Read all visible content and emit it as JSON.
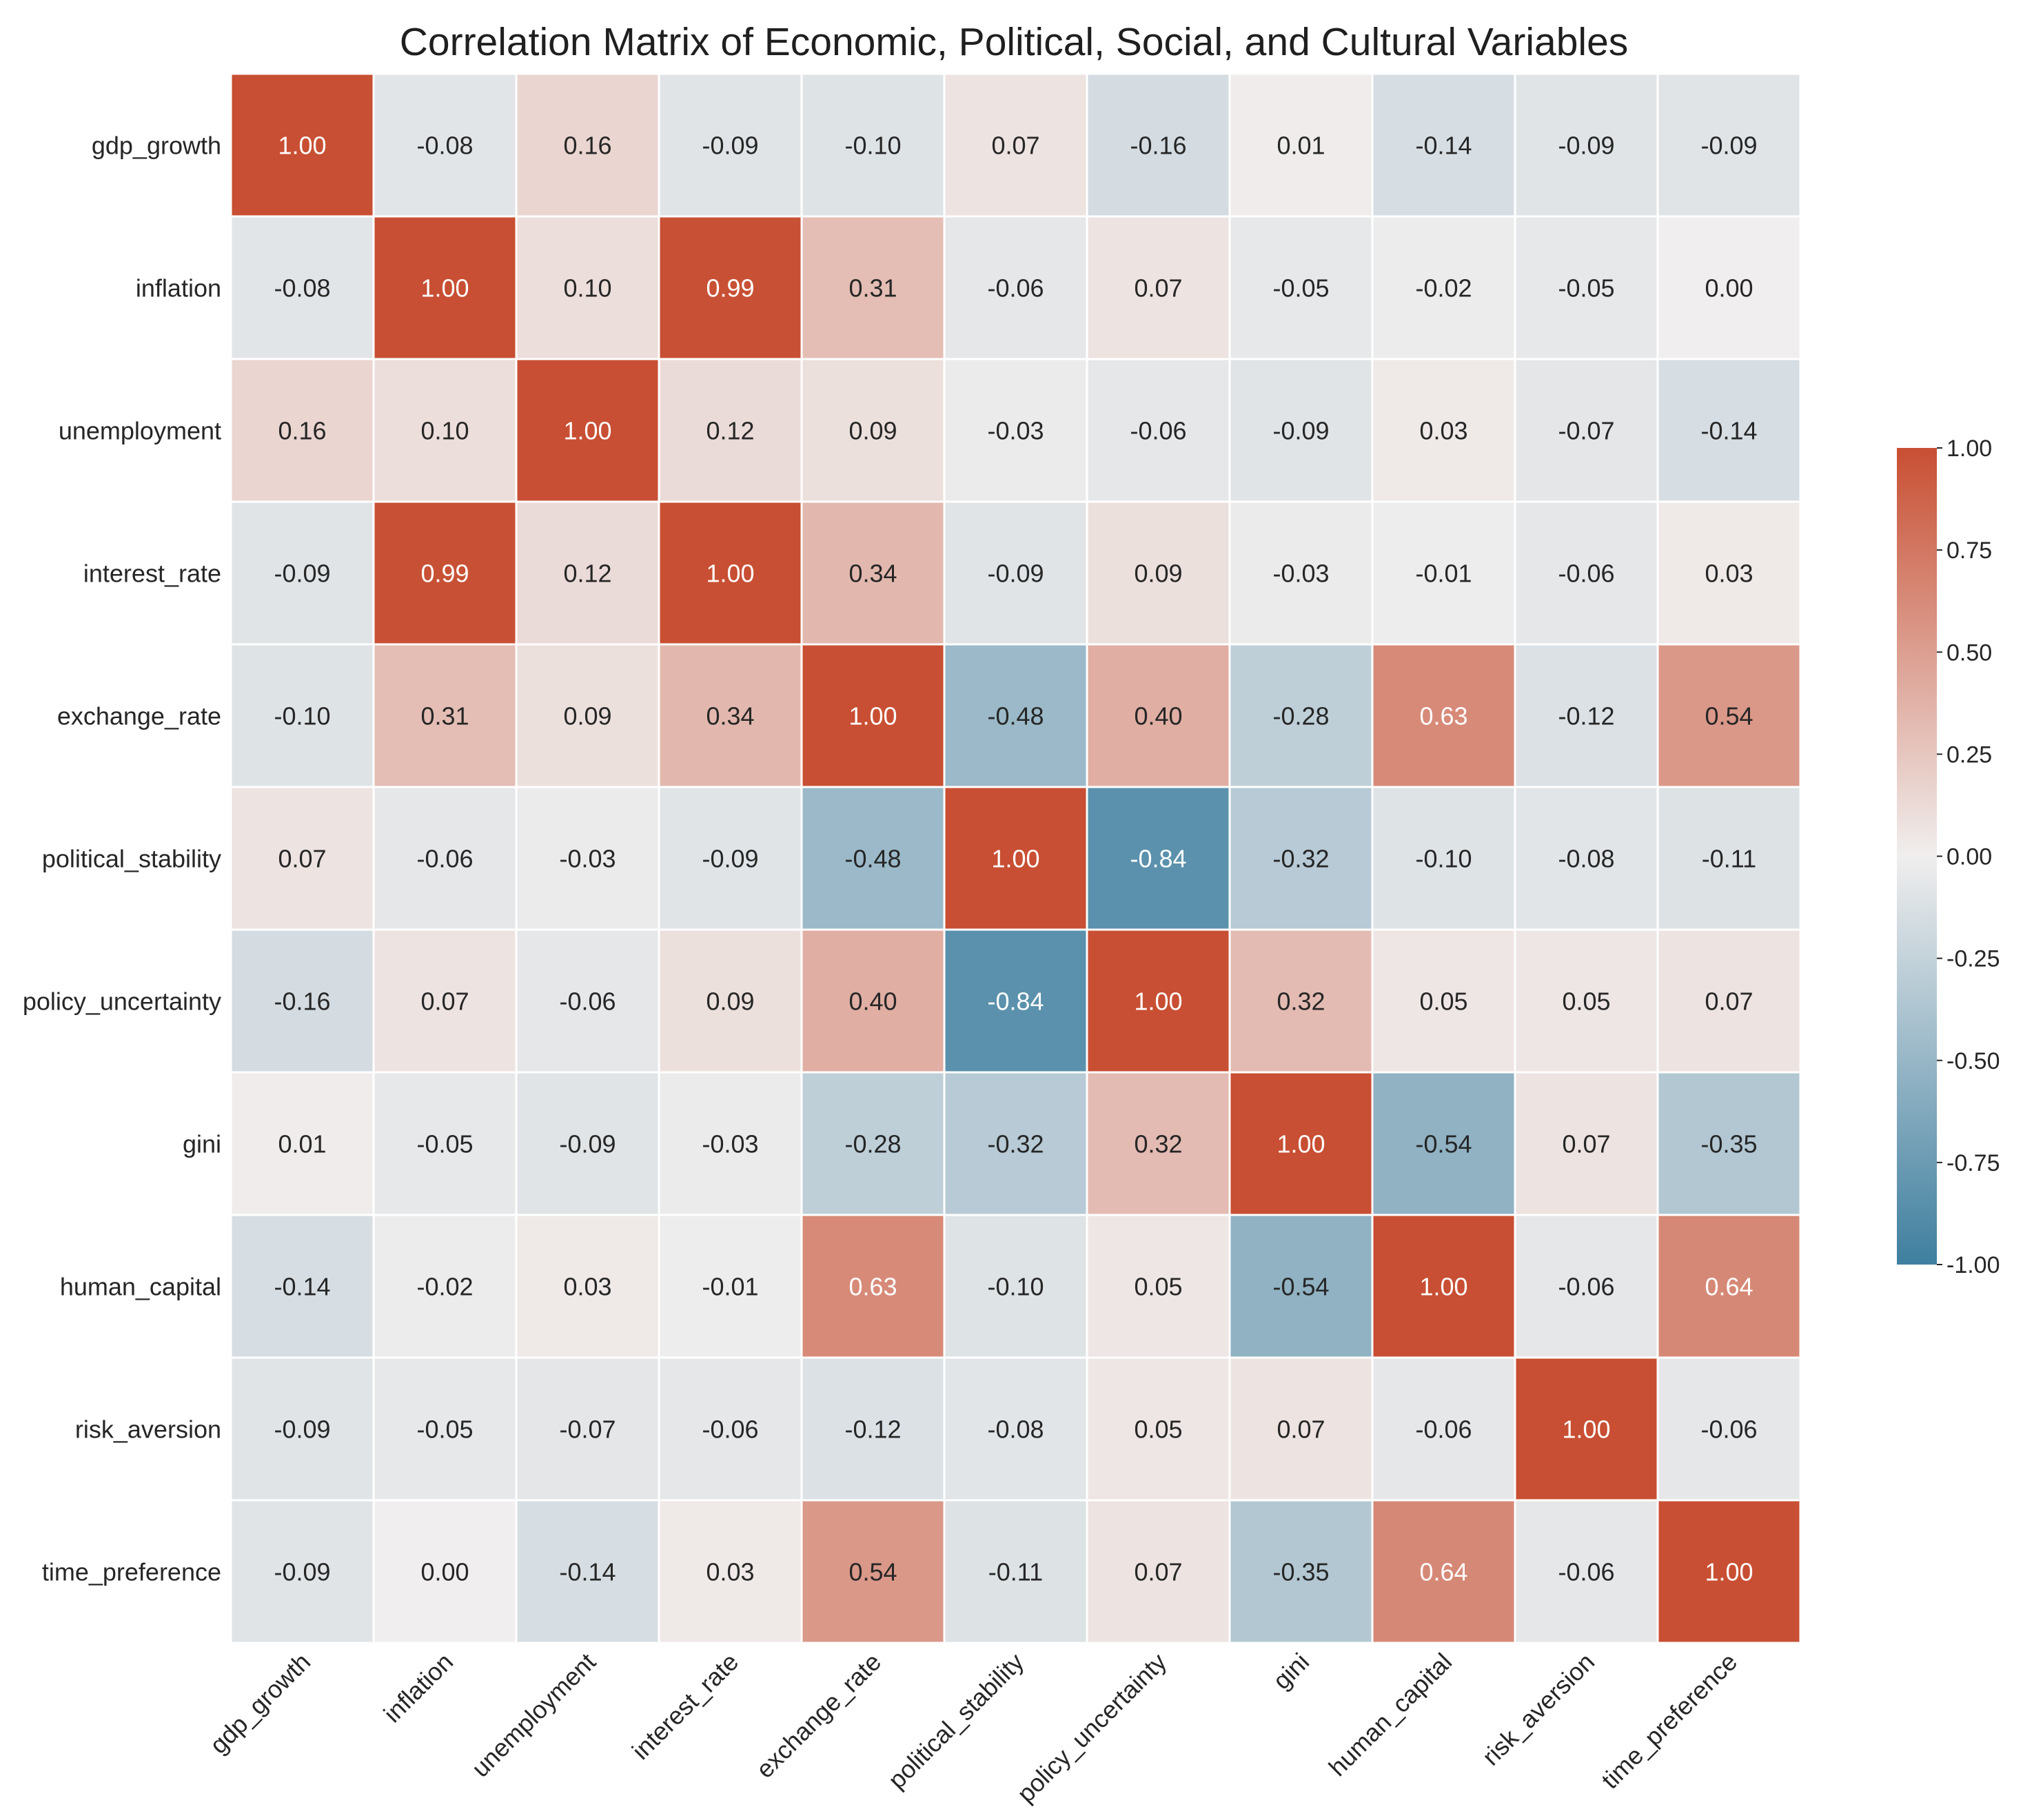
{
  "chart_data": {
    "type": "heatmap",
    "title": "Correlation Matrix of Economic, Political, Social, and Cultural Variables",
    "xlabel": "",
    "ylabel": "",
    "variables": [
      "gdp_growth",
      "inflation",
      "unemployment",
      "interest_rate",
      "exchange_rate",
      "political_stability",
      "policy_uncertainty",
      "gini",
      "human_capital",
      "risk_aversion",
      "time_preference"
    ],
    "matrix": [
      [
        1.0,
        -0.08,
        0.16,
        -0.09,
        -0.1,
        0.07,
        -0.16,
        0.01,
        -0.14,
        -0.09,
        -0.09
      ],
      [
        -0.08,
        1.0,
        0.1,
        0.99,
        0.31,
        -0.06,
        0.07,
        -0.05,
        -0.02,
        -0.05,
        0.0
      ],
      [
        0.16,
        0.1,
        1.0,
        0.12,
        0.09,
        -0.03,
        -0.06,
        -0.09,
        0.03,
        -0.07,
        -0.14
      ],
      [
        -0.09,
        0.99,
        0.12,
        1.0,
        0.34,
        -0.09,
        0.09,
        -0.03,
        -0.01,
        -0.06,
        0.03
      ],
      [
        -0.1,
        0.31,
        0.09,
        0.34,
        1.0,
        -0.48,
        0.4,
        -0.28,
        0.63,
        -0.12,
        0.54
      ],
      [
        0.07,
        -0.06,
        -0.03,
        -0.09,
        -0.48,
        1.0,
        -0.84,
        -0.32,
        -0.1,
        -0.08,
        -0.11
      ],
      [
        -0.16,
        0.07,
        -0.06,
        0.09,
        0.4,
        -0.84,
        1.0,
        0.32,
        0.05,
        0.05,
        0.07
      ],
      [
        0.01,
        -0.05,
        -0.09,
        -0.03,
        -0.28,
        -0.32,
        0.32,
        1.0,
        -0.54,
        0.07,
        -0.35
      ],
      [
        -0.14,
        -0.02,
        0.03,
        -0.01,
        0.63,
        -0.1,
        0.05,
        -0.54,
        1.0,
        -0.06,
        0.64
      ],
      [
        -0.09,
        -0.05,
        -0.07,
        -0.06,
        -0.12,
        -0.08,
        0.05,
        0.07,
        -0.06,
        1.0,
        -0.06
      ],
      [
        -0.09,
        0.0,
        -0.14,
        0.03,
        0.54,
        -0.11,
        0.07,
        -0.35,
        0.64,
        -0.06,
        1.0
      ]
    ],
    "value_range": [
      -1.0,
      1.0
    ],
    "colorbar": {
      "ticks": [
        1.0,
        0.75,
        0.5,
        0.25,
        0.0,
        -0.25,
        -0.5,
        -0.75,
        -1.0
      ],
      "tick_labels": [
        "1.00",
        "0.75",
        "0.50",
        "0.25",
        "0.00",
        "-0.25",
        "-0.50",
        "-0.75",
        "-1.00"
      ]
    },
    "colors": {
      "negative": "#3f7f9f",
      "neutral": "#f0eeee",
      "positive": "#c84f33"
    },
    "annotation_format": "2 decimals",
    "grid": false
  }
}
